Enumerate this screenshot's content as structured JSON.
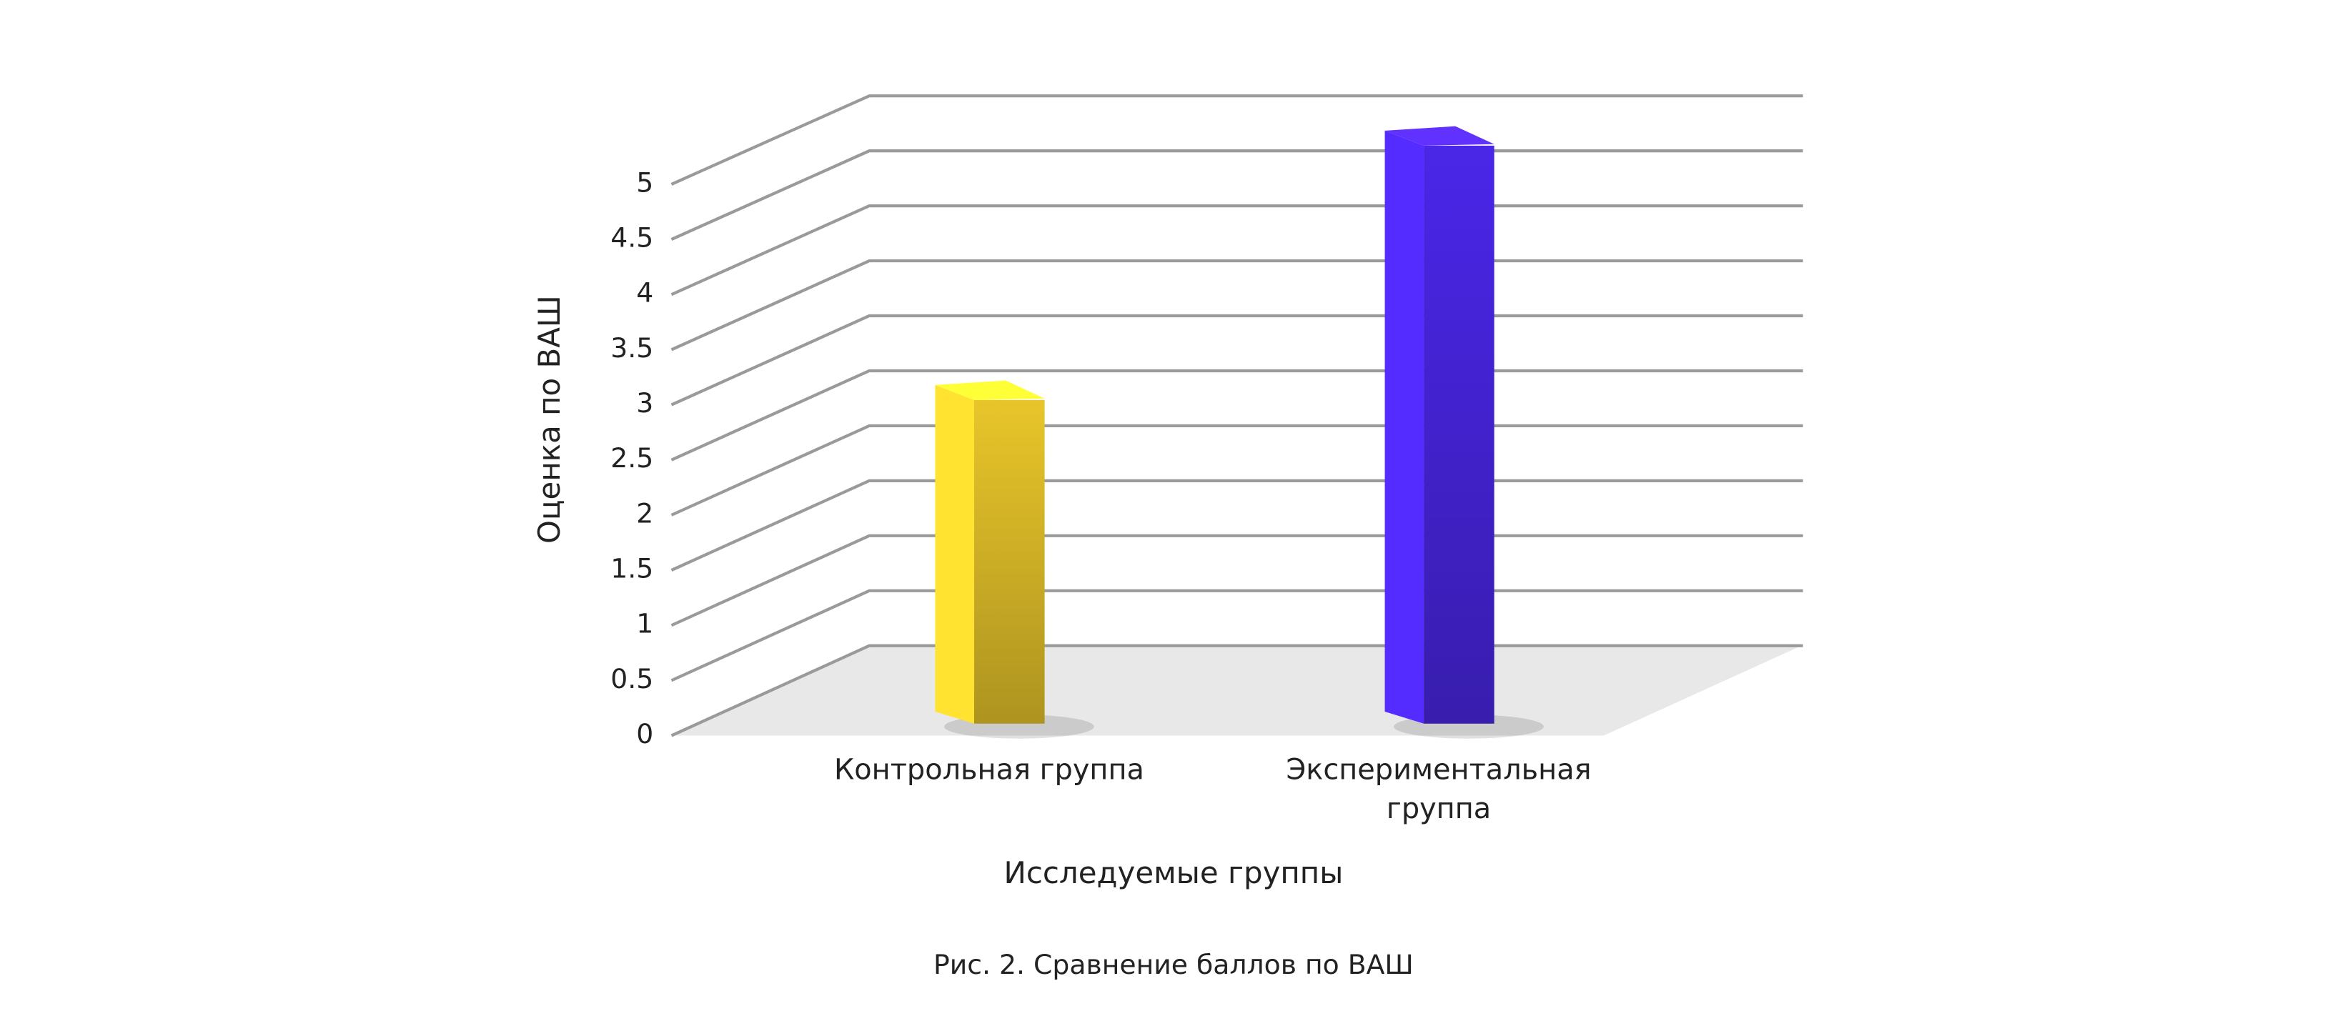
{
  "chart_data": {
    "type": "bar3d",
    "y_axis_label": "Оценка по ВАШ",
    "x_axis_label": "Исследуемые группы",
    "caption": "Рис. 2. Сравнение баллов по ВАШ",
    "categories": [
      "Контрольная группа",
      "Экспериментальная группа"
    ],
    "values": [
      2.9,
      5.2
    ],
    "colors": [
      "#e8c52a",
      "#4a26e8"
    ],
    "ylim": [
      0,
      5
    ],
    "yticks": [
      0,
      0.5,
      1,
      1.5,
      2,
      2.5,
      3,
      3.5,
      4,
      4.5,
      5
    ],
    "grid": true
  }
}
